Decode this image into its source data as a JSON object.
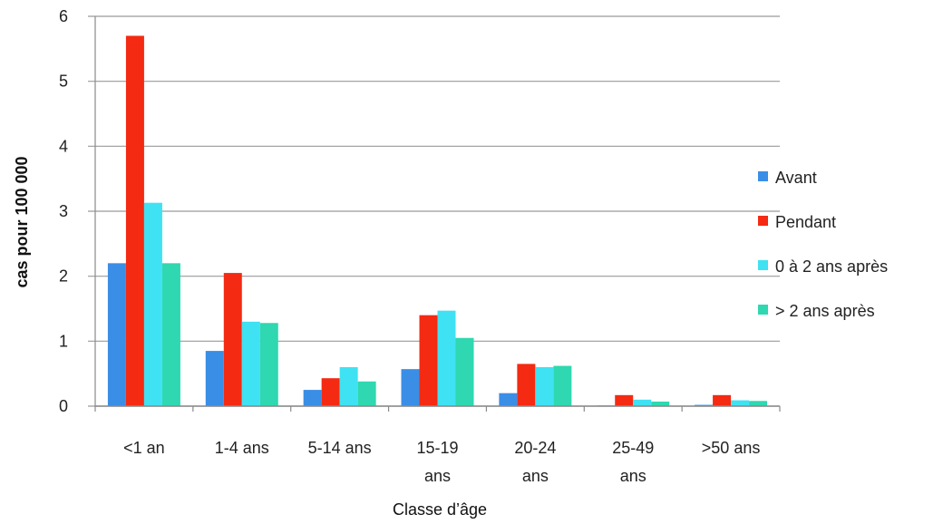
{
  "chart_data": {
    "type": "bar",
    "xlabel": "Classe d’âge",
    "ylabel": "cas pour 100 000",
    "ylim": [
      0,
      6
    ],
    "yticks": [
      "0",
      "1",
      "2",
      "3",
      "4",
      "5",
      "6"
    ],
    "grid": true,
    "legend_position": "right",
    "categories": [
      [
        "<1 an"
      ],
      [
        "1-4 ans"
      ],
      [
        "5-14 ans"
      ],
      [
        "15-19",
        "ans"
      ],
      [
        "20-24",
        "ans"
      ],
      [
        "25-49",
        "ans"
      ],
      [
        ">50 ans"
      ]
    ],
    "series": [
      {
        "name": "Avant",
        "color": "#3a8ee6",
        "values": [
          2.2,
          0.85,
          0.25,
          0.57,
          0.2,
          0.01,
          0.02
        ]
      },
      {
        "name": "Pendant",
        "color": "#f42a12",
        "values": [
          5.7,
          2.05,
          0.43,
          1.4,
          0.65,
          0.17,
          0.17
        ]
      },
      {
        "name": "0 à 2 ans après",
        "color": "#3fe2f2",
        "values": [
          3.13,
          1.3,
          0.6,
          1.47,
          0.6,
          0.1,
          0.09
        ]
      },
      {
        "name": "> 2 ans après",
        "color": "#2fd8b0",
        "values": [
          2.2,
          1.28,
          0.38,
          1.05,
          0.62,
          0.07,
          0.08
        ]
      }
    ]
  }
}
